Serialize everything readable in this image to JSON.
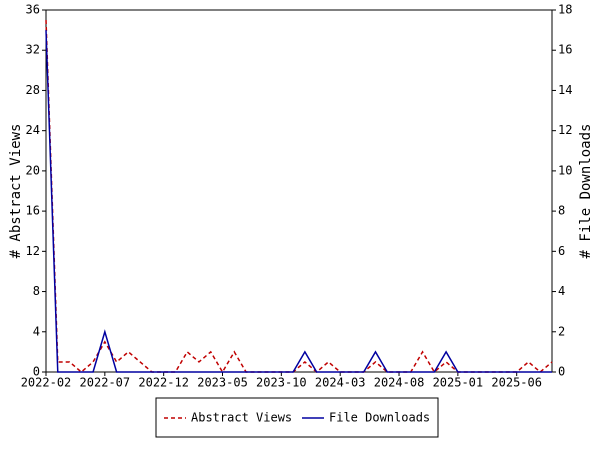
{
  "chart_data": {
    "type": "line",
    "ylabel": "# Abstract Views",
    "y2label": "# File Downloads",
    "categories": [
      "2022-02",
      null,
      null,
      null,
      null,
      "2022-07",
      null,
      null,
      null,
      null,
      "2022-12",
      null,
      null,
      null,
      null,
      "2023-05",
      null,
      null,
      null,
      null,
      "2023-10",
      null,
      null,
      null,
      null,
      "2024-03",
      null,
      null,
      null,
      null,
      "2024-08",
      null,
      null,
      null,
      null,
      "2025-01",
      null,
      null,
      null,
      null,
      "2025-06",
      null,
      null,
      null
    ],
    "series": [
      {
        "name": "Abstract Views",
        "color": "#c00000",
        "dashed": true,
        "axis": "y",
        "values": [
          35,
          1,
          1,
          0,
          1,
          3,
          1,
          2,
          1,
          0,
          0,
          0,
          2,
          1,
          2,
          0,
          2,
          0,
          0,
          0,
          0,
          0,
          1,
          0,
          1,
          0,
          0,
          0,
          1,
          0,
          0,
          0,
          2,
          0,
          1,
          0,
          0,
          0,
          0,
          0,
          0,
          1,
          0,
          1
        ]
      },
      {
        "name": "File Downloads",
        "color": "#0000a0",
        "dashed": false,
        "axis": "y2",
        "values": [
          17,
          0,
          0,
          0,
          0,
          2,
          0,
          0,
          0,
          0,
          0,
          0,
          0,
          0,
          0,
          0,
          0,
          0,
          0,
          0,
          0,
          0,
          1,
          0,
          0,
          0,
          0,
          0,
          1,
          0,
          0,
          0,
          0,
          0,
          1,
          0,
          0,
          0,
          0,
          0,
          0,
          0,
          0,
          0
        ]
      }
    ],
    "ylim": [
      0,
      36
    ],
    "yticks": [
      0,
      4,
      8,
      12,
      16,
      20,
      24,
      28,
      32,
      36
    ],
    "y2lim": [
      0,
      18
    ],
    "y2ticks": [
      0,
      2,
      4,
      6,
      8,
      10,
      12,
      14,
      16,
      18
    ],
    "legend": "bottom"
  }
}
